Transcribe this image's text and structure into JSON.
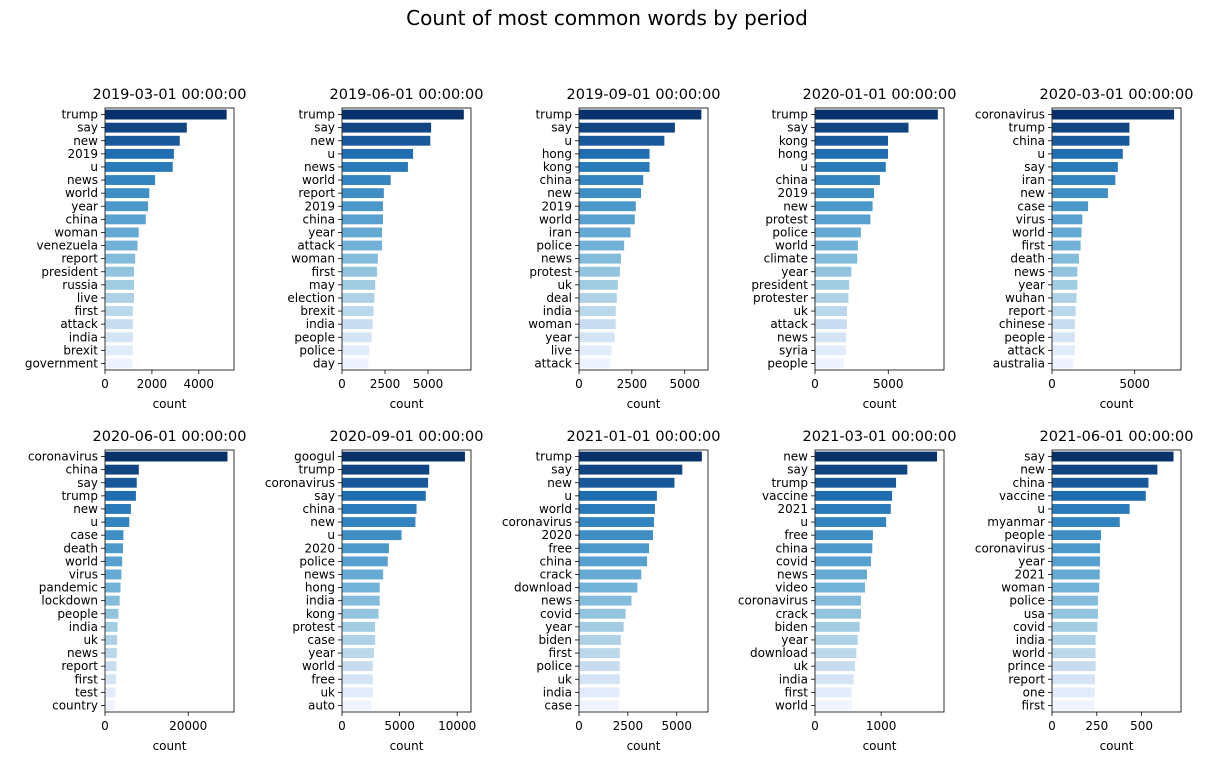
{
  "figure_title": "Count of most common words by period",
  "chart_data": [
    {
      "type": "bar",
      "orientation": "horizontal",
      "title": "2019-03-01 00:00:00",
      "xlabel": "count",
      "xlim": [
        0,
        5500
      ],
      "xticks": [
        0,
        2000,
        4000
      ],
      "categories": [
        "trump",
        "say",
        "new",
        "2019",
        "u",
        "news",
        "world",
        "year",
        "china",
        "woman",
        "venezuela",
        "report",
        "president",
        "russia",
        "live",
        "first",
        "attack",
        "india",
        "brexit",
        "government"
      ],
      "values": [
        5200,
        3500,
        3200,
        2950,
        2900,
        2150,
        1900,
        1850,
        1750,
        1450,
        1400,
        1300,
        1250,
        1250,
        1250,
        1200,
        1200,
        1200,
        1200,
        1200
      ]
    },
    {
      "type": "bar",
      "orientation": "horizontal",
      "title": "2019-06-01 00:00:00",
      "xlabel": "count",
      "xlim": [
        0,
        7500
      ],
      "xticks": [
        0,
        2500,
        5000
      ],
      "categories": [
        "trump",
        "say",
        "new",
        "u",
        "news",
        "world",
        "report",
        "2019",
        "china",
        "year",
        "attack",
        "woman",
        "first",
        "may",
        "election",
        "brexit",
        "india",
        "people",
        "police",
        "day"
      ],
      "values": [
        7100,
        5200,
        5150,
        4150,
        3850,
        2850,
        2450,
        2400,
        2400,
        2350,
        2350,
        2100,
        2050,
        1950,
        1900,
        1850,
        1800,
        1750,
        1600,
        1550
      ]
    },
    {
      "type": "bar",
      "orientation": "horizontal",
      "title": "2019-09-01 00:00:00",
      "xlabel": "count",
      "xlim": [
        0,
        6100
      ],
      "xticks": [
        0,
        2500,
        5000
      ],
      "categories": [
        "trump",
        "say",
        "u",
        "hong",
        "kong",
        "china",
        "new",
        "2019",
        "world",
        "iran",
        "police",
        "news",
        "protest",
        "uk",
        "deal",
        "india",
        "woman",
        "year",
        "live",
        "attack"
      ],
      "values": [
        5800,
        4550,
        4050,
        3350,
        3350,
        3050,
        2950,
        2700,
        2650,
        2450,
        2150,
        2000,
        1950,
        1850,
        1800,
        1750,
        1750,
        1700,
        1550,
        1500
      ]
    },
    {
      "type": "bar",
      "orientation": "horizontal",
      "title": "2020-01-01 00:00:00",
      "xlabel": "count",
      "xlim": [
        0,
        8800
      ],
      "xticks": [
        0,
        5000
      ],
      "categories": [
        "trump",
        "say",
        "kong",
        "hong",
        "u",
        "china",
        "2019",
        "new",
        "protest",
        "police",
        "world",
        "climate",
        "year",
        "president",
        "protester",
        "uk",
        "attack",
        "news",
        "syria",
        "people"
      ],
      "values": [
        8400,
        6400,
        5000,
        5000,
        4850,
        4450,
        4050,
        3950,
        3800,
        3150,
        2950,
        2900,
        2500,
        2350,
        2300,
        2200,
        2200,
        2150,
        2150,
        2000
      ]
    },
    {
      "type": "bar",
      "orientation": "horizontal",
      "title": "2020-03-01 00:00:00",
      "xlabel": "count",
      "xlim": [
        0,
        7800
      ],
      "xticks": [
        0,
        5000
      ],
      "categories": [
        "coronavirus",
        "trump",
        "china",
        "u",
        "say",
        "iran",
        "new",
        "case",
        "virus",
        "world",
        "first",
        "death",
        "news",
        "year",
        "wuhan",
        "report",
        "chinese",
        "people",
        "attack",
        "australia"
      ],
      "values": [
        7400,
        4700,
        4700,
        4300,
        4000,
        3850,
        3400,
        2200,
        1850,
        1800,
        1750,
        1650,
        1550,
        1550,
        1500,
        1450,
        1400,
        1400,
        1400,
        1300
      ]
    },
    {
      "type": "bar",
      "orientation": "horizontal",
      "title": "2020-06-01 00:00:00",
      "xlabel": "count",
      "xlim": [
        0,
        31000
      ],
      "xticks": [
        0,
        20000
      ],
      "categories": [
        "coronavirus",
        "china",
        "say",
        "trump",
        "new",
        "u",
        "case",
        "death",
        "world",
        "virus",
        "pandemic",
        "lockdown",
        "people",
        "india",
        "uk",
        "news",
        "report",
        "first",
        "test",
        "country"
      ],
      "values": [
        29500,
        8200,
        7700,
        7500,
        6300,
        5900,
        4500,
        4400,
        4200,
        4000,
        3800,
        3600,
        3300,
        3100,
        3000,
        2900,
        2800,
        2700,
        2600,
        2500
      ]
    },
    {
      "type": "bar",
      "orientation": "horizontal",
      "title": "2020-09-01 00:00:00",
      "xlabel": "count",
      "xlim": [
        0,
        11200
      ],
      "xticks": [
        0,
        5000,
        10000
      ],
      "categories": [
        "googul",
        "trump",
        "coronavirus",
        "say",
        "china",
        "new",
        "u",
        "2020",
        "police",
        "news",
        "hong",
        "india",
        "kong",
        "protest",
        "case",
        "year",
        "world",
        "free",
        "uk",
        "auto"
      ],
      "values": [
        10700,
        7600,
        7500,
        7300,
        6500,
        6400,
        5200,
        4100,
        4000,
        3600,
        3300,
        3300,
        3200,
        2900,
        2900,
        2800,
        2700,
        2700,
        2700,
        2600
      ]
    },
    {
      "type": "bar",
      "orientation": "horizontal",
      "title": "2021-01-01 00:00:00",
      "xlabel": "count",
      "xlim": [
        0,
        6600
      ],
      "xticks": [
        0,
        2500,
        5000
      ],
      "categories": [
        "trump",
        "say",
        "new",
        "u",
        "world",
        "coronavirus",
        "2020",
        "free",
        "china",
        "crack",
        "download",
        "news",
        "covid",
        "year",
        "biden",
        "first",
        "police",
        "uk",
        "india",
        "case"
      ],
      "values": [
        6300,
        5300,
        4900,
        4000,
        3900,
        3850,
        3800,
        3600,
        3500,
        3200,
        3000,
        2700,
        2400,
        2300,
        2150,
        2100,
        2100,
        2100,
        2100,
        2050
      ]
    },
    {
      "type": "bar",
      "orientation": "horizontal",
      "title": "2021-03-01 00:00:00",
      "xlabel": "count",
      "xlim": [
        0,
        1950
      ],
      "xticks": [
        0,
        1000
      ],
      "categories": [
        "new",
        "say",
        "trump",
        "vaccine",
        "2021",
        "u",
        "free",
        "china",
        "covid",
        "news",
        "video",
        "coronavirus",
        "crack",
        "biden",
        "year",
        "download",
        "uk",
        "india",
        "first",
        "world"
      ],
      "values": [
        1850,
        1400,
        1230,
        1170,
        1150,
        1080,
        880,
        870,
        850,
        790,
        760,
        700,
        700,
        680,
        650,
        630,
        610,
        590,
        560,
        560
      ]
    },
    {
      "type": "bar",
      "orientation": "horizontal",
      "title": "2021-06-01 00:00:00",
      "xlabel": "count",
      "xlim": [
        0,
        720
      ],
      "xticks": [
        0,
        250,
        500
      ],
      "categories": [
        "say",
        "new",
        "china",
        "vaccine",
        "u",
        "myanmar",
        "people",
        "coronavirus",
        "year",
        "2021",
        "woman",
        "police",
        "usa",
        "covid",
        "india",
        "world",
        "prince",
        "report",
        "one",
        "first"
      ],
      "values": [
        680,
        590,
        540,
        525,
        435,
        380,
        275,
        270,
        270,
        268,
        265,
        258,
        258,
        255,
        245,
        245,
        245,
        242,
        240,
        238
      ]
    }
  ]
}
